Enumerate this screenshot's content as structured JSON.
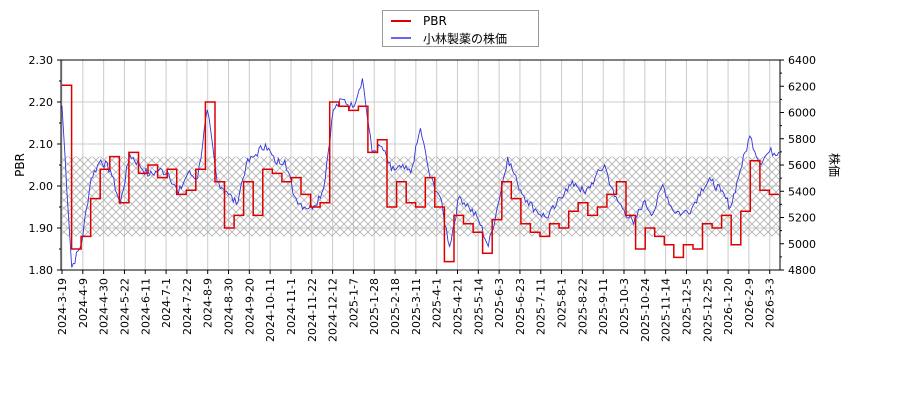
{
  "chart_data": {
    "type": "line",
    "title": "",
    "legend": {
      "position": "top-center",
      "entries": [
        {
          "label": "PBR",
          "color": "#dd0000"
        },
        {
          "label": "小林製薬の株価",
          "color": "#3333dd"
        }
      ]
    },
    "xlabel": "",
    "ylabel_left": "PBR",
    "ylabel_right": "株価",
    "ylim_left": [
      1.8,
      2.3
    ],
    "ylim_right": [
      4800,
      6400
    ],
    "yticks_left": [
      "1.80",
      "1.90",
      "2.00",
      "2.10",
      "2.20",
      "2.30"
    ],
    "yticks_right": [
      "4800",
      "5000",
      "5200",
      "5400",
      "5600",
      "5800",
      "6000",
      "6200",
      "6400"
    ],
    "xticks": [
      "2024-3-19",
      "2024-4-9",
      "2024-4-30",
      "2024-5-22",
      "2024-6-11",
      "2024-7-1",
      "2024-7-22",
      "2024-8-9",
      "2024-8-30",
      "2024-9-20",
      "2024-10-11",
      "2024-11-1",
      "2024-11-22",
      "2024-12-12",
      "2025-1-7",
      "2025-1-28",
      "2025-2-18",
      "2025-3-11",
      "2025-4-1",
      "2025-4-21",
      "2025-5-14",
      "2025-6-3",
      "2025-6-23",
      "2025-7-11",
      "2025-8-1",
      "2025-8-22",
      "2025-9-11",
      "2025-10-3",
      "2025-10-24",
      "2025-11-14",
      "2025-12-5",
      "2025-12-25",
      "2026-1-20",
      "2026-2-9",
      "2026-3-3"
    ],
    "grid": true,
    "hatched_band": {
      "pbr_low": 1.88,
      "pbr_high": 2.07
    },
    "series": [
      {
        "name": "PBR",
        "axis": "left",
        "step": true,
        "values": [
          2.24,
          1.85,
          1.88,
          1.97,
          2.04,
          2.07,
          1.96,
          2.08,
          2.03,
          2.05,
          2.02,
          2.04,
          1.98,
          1.99,
          2.04,
          2.2,
          2.01,
          1.9,
          1.93,
          2.01,
          1.93,
          2.04,
          2.03,
          2.01,
          2.02,
          1.98,
          1.95,
          1.96,
          2.2,
          2.19,
          2.18,
          2.19,
          2.08,
          2.11,
          1.95,
          2.01,
          1.96,
          1.95,
          2.02,
          1.95,
          1.82,
          1.93,
          1.91,
          1.89,
          1.84,
          1.92,
          2.01,
          1.97,
          1.91,
          1.89,
          1.88,
          1.91,
          1.9,
          1.94,
          1.96,
          1.93,
          1.95,
          1.98,
          2.01,
          1.93,
          1.85,
          1.9,
          1.88,
          1.86,
          1.83,
          1.86,
          1.85,
          1.91,
          1.9,
          1.93,
          1.86,
          1.94,
          2.06,
          1.99,
          1.98
        ]
      },
      {
        "name": "小林製薬の株価",
        "axis": "right",
        "values": [
          6050,
          4820,
          5000,
          5500,
          5640,
          5560,
          5300,
          5680,
          5600,
          5520,
          5560,
          5540,
          5380,
          5540,
          5500,
          6020,
          5480,
          5400,
          5300,
          5600,
          5680,
          5760,
          5620,
          5640,
          5360,
          5280,
          5290,
          5420,
          6020,
          6100,
          6040,
          6260,
          5700,
          5740,
          5560,
          5580,
          5540,
          5880,
          5500,
          5360,
          4980,
          5360,
          5280,
          5180,
          4980,
          5300,
          5660,
          5460,
          5330,
          5250,
          5200,
          5290,
          5420,
          5460,
          5380,
          5500,
          5600,
          5360,
          5260,
          5150,
          5320,
          5230,
          5450,
          5260,
          5230,
          5270,
          5420,
          5480,
          5400,
          5280,
          5560,
          5820,
          5620,
          5700,
          5700
        ]
      }
    ]
  }
}
